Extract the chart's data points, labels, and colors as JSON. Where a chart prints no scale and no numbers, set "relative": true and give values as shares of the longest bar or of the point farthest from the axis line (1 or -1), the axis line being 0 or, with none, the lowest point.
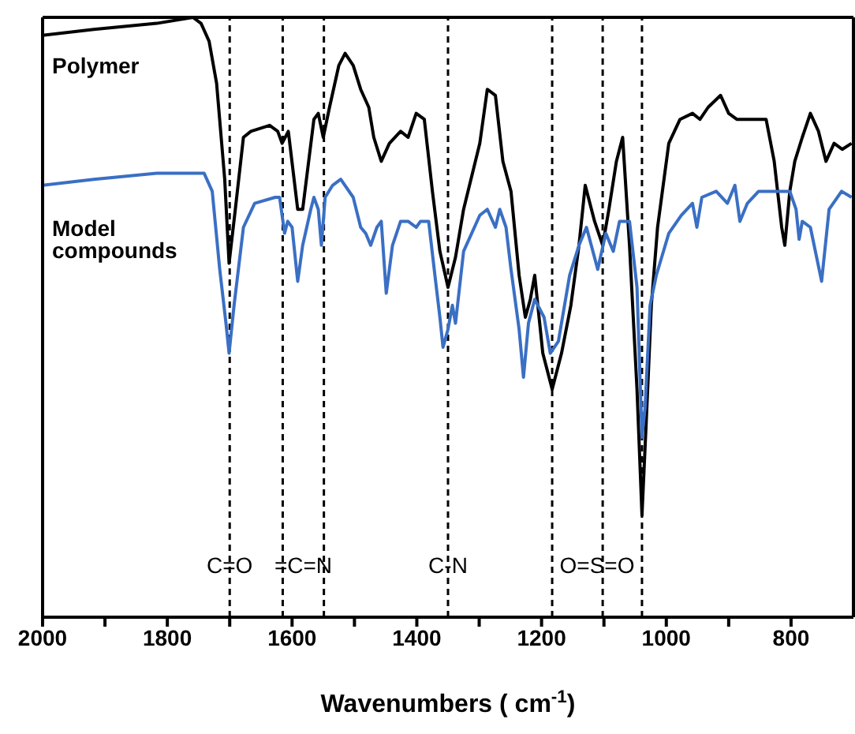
{
  "chart_data": {
    "type": "line",
    "relative": true,
    "xlabel": "Wavenumbers ( cm$^{-1}$)",
    "xlim": [
      2000,
      700
    ],
    "xticks": [
      2000,
      {
        "value": 1900,
        "label": null
      },
      1800,
      {
        "value": 1700,
        "label": null
      },
      1600,
      {
        "value": 1500,
        "label": null
      },
      1400,
      {
        "value": 1300,
        "label": null
      },
      1200,
      {
        "value": 1100,
        "label": null
      },
      1000,
      {
        "value": 900,
        "label": null
      },
      800
    ],
    "grid": false,
    "legend": false,
    "marker": "none",
    "line_style": "solid",
    "ref_lines": [
      {
        "axis": "x",
        "value": 1700,
        "line_style": "dashed",
        "color": "#000000",
        "label": "C=O"
      },
      {
        "axis": "x",
        "value": 1615,
        "line_style": "dashed",
        "color": "#000000",
        "label": "=C=N"
      },
      {
        "axis": "x",
        "value": 1549,
        "line_style": "dashed",
        "color": "#000000"
      },
      {
        "axis": "x",
        "value": 1350,
        "line_style": "dashed",
        "color": "#000000",
        "label": "C-N"
      },
      {
        "axis": "x",
        "value": 1183,
        "line_style": "dashed",
        "color": "#000000",
        "label": "O=S=O"
      },
      {
        "axis": "x",
        "value": 1102,
        "line_style": "dashed",
        "color": "#000000"
      },
      {
        "axis": "x",
        "value": 1039,
        "line_style": "dashed",
        "color": "#000000"
      }
    ],
    "series": [
      {
        "name": "Polymer",
        "color": "#000000",
        "x": [
          2000,
          1918,
          1817,
          1759,
          1746,
          1733,
          1721,
          1708,
          1701,
          1691,
          1678,
          1666,
          1636,
          1623,
          1616,
          1606,
          1591,
          1583,
          1565,
          1558,
          1550,
          1540,
          1525,
          1515,
          1502,
          1490,
          1477,
          1469,
          1457,
          1444,
          1426,
          1414,
          1401,
          1388,
          1375,
          1363,
          1350,
          1338,
          1325,
          1299,
          1287,
          1274,
          1262,
          1249,
          1236,
          1226,
          1218,
          1211,
          1198,
          1183,
          1168,
          1153,
          1140,
          1130,
          1115,
          1102,
          1092,
          1080,
          1070,
          1059,
          1047,
          1039,
          1032,
          1024,
          1014,
          996,
          978,
          958,
          946,
          933,
          913,
          900,
          887,
          870,
          840,
          827,
          815,
          810,
          802,
          794,
          782,
          769,
          756,
          744,
          731,
          718,
          703
        ],
        "values": [
          0.97,
          0.98,
          0.99,
          1.0,
          0.99,
          0.96,
          0.89,
          0.73,
          0.59,
          0.68,
          0.8,
          0.81,
          0.82,
          0.81,
          0.79,
          0.81,
          0.68,
          0.68,
          0.83,
          0.84,
          0.8,
          0.85,
          0.92,
          0.94,
          0.92,
          0.88,
          0.85,
          0.8,
          0.76,
          0.79,
          0.81,
          0.8,
          0.84,
          0.83,
          0.71,
          0.61,
          0.55,
          0.6,
          0.68,
          0.79,
          0.88,
          0.87,
          0.76,
          0.71,
          0.57,
          0.5,
          0.53,
          0.57,
          0.44,
          0.38,
          0.44,
          0.52,
          0.62,
          0.72,
          0.66,
          0.62,
          0.68,
          0.76,
          0.8,
          0.62,
          0.38,
          0.17,
          0.33,
          0.52,
          0.65,
          0.79,
          0.83,
          0.84,
          0.83,
          0.85,
          0.87,
          0.84,
          0.83,
          0.83,
          0.83,
          0.76,
          0.65,
          0.62,
          0.71,
          0.76,
          0.8,
          0.84,
          0.81,
          0.76,
          0.79,
          0.78,
          0.79
        ]
      },
      {
        "name": "Model compounds",
        "color": "#3a6fc4",
        "x": [
          2000,
          1918,
          1817,
          1759,
          1741,
          1728,
          1716,
          1706,
          1701,
          1693,
          1678,
          1660,
          1627,
          1620,
          1612,
          1607,
          1600,
          1591,
          1583,
          1570,
          1565,
          1558,
          1553,
          1547,
          1535,
          1522,
          1502,
          1490,
          1482,
          1474,
          1464,
          1457,
          1449,
          1439,
          1426,
          1414,
          1401,
          1394,
          1381,
          1371,
          1363,
          1358,
          1350,
          1343,
          1338,
          1325,
          1299,
          1287,
          1274,
          1267,
          1257,
          1249,
          1236,
          1229,
          1221,
          1211,
          1196,
          1186,
          1173,
          1155,
          1140,
          1128,
          1110,
          1097,
          1085,
          1075,
          1059,
          1047,
          1039,
          1034,
          1026,
          1016,
          996,
          976,
          958,
          951,
          943,
          920,
          902,
          890,
          882,
          870,
          852,
          832,
          815,
          802,
          792,
          787,
          782,
          769,
          751,
          739,
          719,
          703
        ],
        "values": [
          0.72,
          0.73,
          0.74,
          0.74,
          0.74,
          0.71,
          0.58,
          0.49,
          0.44,
          0.52,
          0.65,
          0.69,
          0.7,
          0.7,
          0.64,
          0.66,
          0.65,
          0.56,
          0.62,
          0.68,
          0.7,
          0.68,
          0.62,
          0.7,
          0.72,
          0.73,
          0.7,
          0.65,
          0.64,
          0.62,
          0.65,
          0.66,
          0.54,
          0.62,
          0.66,
          0.66,
          0.65,
          0.66,
          0.66,
          0.57,
          0.5,
          0.45,
          0.48,
          0.52,
          0.49,
          0.61,
          0.67,
          0.68,
          0.65,
          0.68,
          0.65,
          0.58,
          0.48,
          0.4,
          0.49,
          0.53,
          0.5,
          0.44,
          0.46,
          0.57,
          0.62,
          0.65,
          0.58,
          0.64,
          0.61,
          0.66,
          0.66,
          0.55,
          0.3,
          0.35,
          0.52,
          0.57,
          0.64,
          0.67,
          0.69,
          0.65,
          0.7,
          0.71,
          0.69,
          0.72,
          0.66,
          0.69,
          0.71,
          0.71,
          0.71,
          0.71,
          0.68,
          0.63,
          0.66,
          0.65,
          0.56,
          0.68,
          0.71,
          0.7
        ]
      }
    ]
  }
}
